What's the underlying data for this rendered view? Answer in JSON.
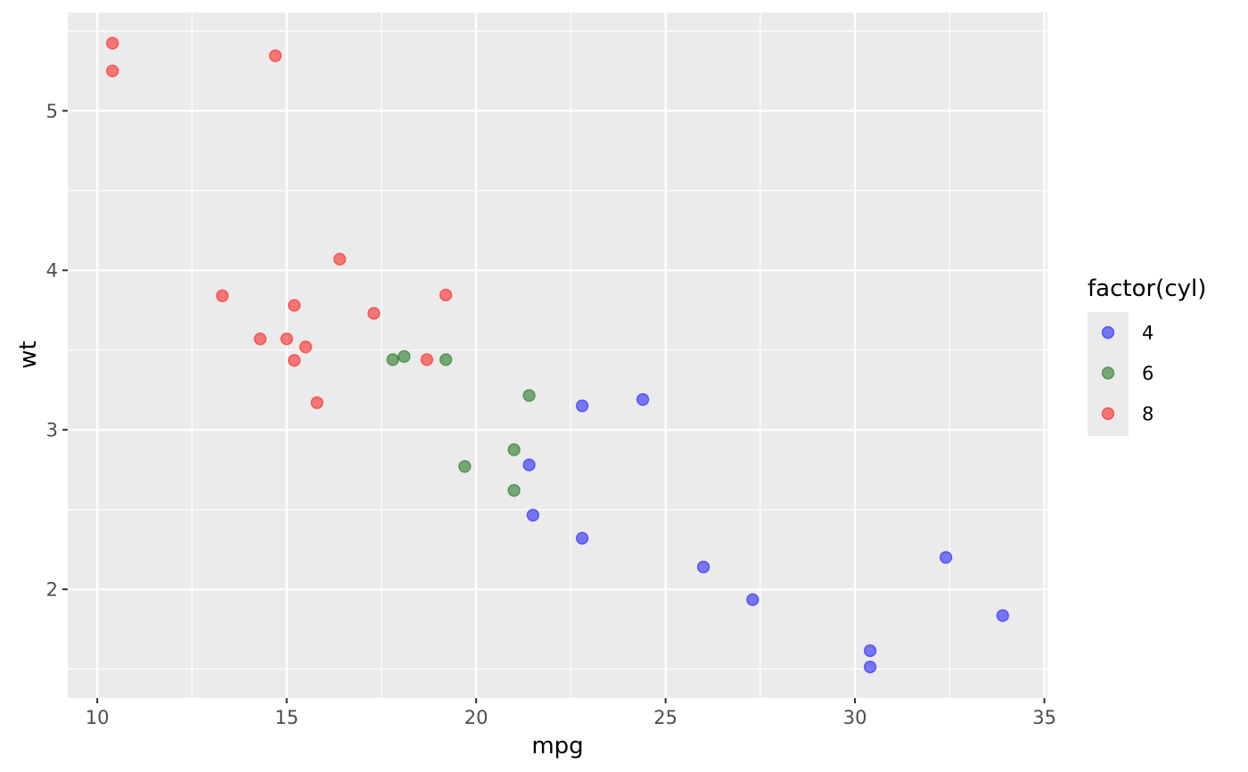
{
  "chart_data": {
    "type": "scatter",
    "xlabel": "mpg",
    "ylabel": "wt",
    "xlim": [
      9.22,
      35.08
    ],
    "ylim": [
      1.3185,
      5.6165
    ],
    "x_ticks": [
      10,
      15,
      20,
      25,
      30,
      35
    ],
    "x_tick_labels": [
      "10",
      "15",
      "20",
      "25",
      "30",
      "35"
    ],
    "x_minor": [
      12.5,
      17.5,
      22.5,
      27.5,
      32.5
    ],
    "y_ticks": [
      2,
      3,
      4,
      5
    ],
    "y_tick_labels": [
      "2",
      "3",
      "4",
      "5"
    ],
    "y_minor": [
      1.5,
      2.5,
      3.5,
      4.5,
      5.5
    ],
    "grid": true,
    "panel_background": "#ebebeb",
    "legend": {
      "title": "factor(cyl)",
      "placement": "right"
    },
    "series": [
      {
        "name": "4",
        "color": "#0000ff",
        "points": [
          {
            "x": 22.8,
            "y": 2.32
          },
          {
            "x": 24.4,
            "y": 3.19
          },
          {
            "x": 22.8,
            "y": 3.15
          },
          {
            "x": 32.4,
            "y": 2.2
          },
          {
            "x": 30.4,
            "y": 1.615
          },
          {
            "x": 33.9,
            "y": 1.835
          },
          {
            "x": 21.5,
            "y": 2.465
          },
          {
            "x": 27.3,
            "y": 1.935
          },
          {
            "x": 26.0,
            "y": 2.14
          },
          {
            "x": 30.4,
            "y": 1.513
          },
          {
            "x": 21.4,
            "y": 2.78
          }
        ]
      },
      {
        "name": "6",
        "color": "#006400",
        "points": [
          {
            "x": 21.0,
            "y": 2.62
          },
          {
            "x": 21.0,
            "y": 2.875
          },
          {
            "x": 21.4,
            "y": 3.215
          },
          {
            "x": 18.1,
            "y": 3.46
          },
          {
            "x": 19.2,
            "y": 3.44
          },
          {
            "x": 17.8,
            "y": 3.44
          },
          {
            "x": 19.7,
            "y": 2.77
          }
        ]
      },
      {
        "name": "8",
        "color": "#ff0000",
        "points": [
          {
            "x": 18.7,
            "y": 3.44
          },
          {
            "x": 14.3,
            "y": 3.57
          },
          {
            "x": 16.4,
            "y": 4.07
          },
          {
            "x": 17.3,
            "y": 3.73
          },
          {
            "x": 15.2,
            "y": 3.78
          },
          {
            "x": 10.4,
            "y": 5.25
          },
          {
            "x": 10.4,
            "y": 5.424
          },
          {
            "x": 14.7,
            "y": 5.345
          },
          {
            "x": 15.5,
            "y": 3.52
          },
          {
            "x": 15.2,
            "y": 3.435
          },
          {
            "x": 13.3,
            "y": 3.84
          },
          {
            "x": 19.2,
            "y": 3.845
          },
          {
            "x": 15.8,
            "y": 3.17
          },
          {
            "x": 15.0,
            "y": 3.57
          }
        ]
      }
    ]
  }
}
